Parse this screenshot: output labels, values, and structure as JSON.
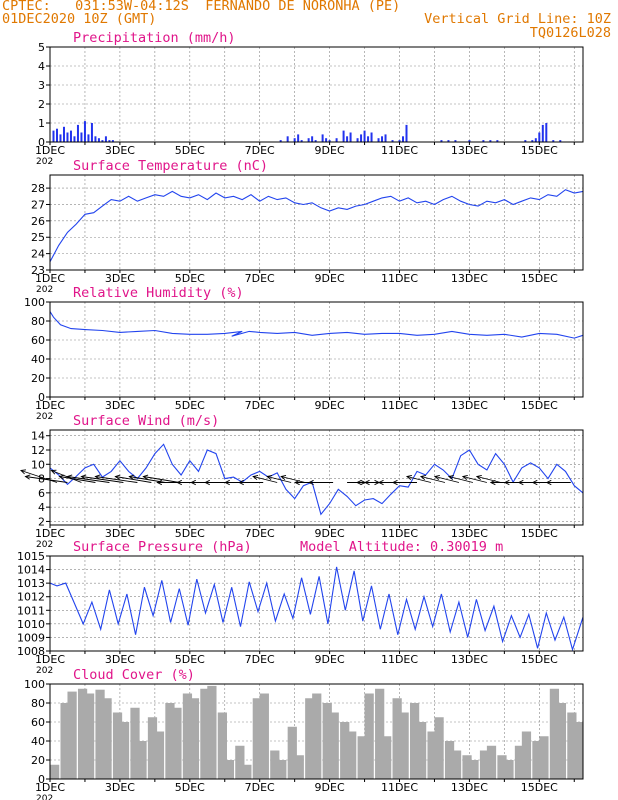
{
  "header": {
    "line1_left": "CPTEC:   031:53W-04:12S  FERNANDO DE NORONHA (PE)",
    "line2_left": "01DEC2020 10Z (GMT)",
    "line2_right": "Vertical Grid Line: 10Z",
    "line3_right": "TQ0126L028"
  },
  "colors": {
    "header": "#e07800",
    "title": "#e0158a",
    "line": "#2244ee",
    "bar": "#2233ee",
    "cloud": "#aaaaaa",
    "arrow": "#000000"
  },
  "x_axis": {
    "labels": [
      "1DEC",
      "3DEC",
      "5DEC",
      "7DEC",
      "9DEC",
      "11DEC",
      "13DEC",
      "15DEC"
    ],
    "cut_label": "202"
  },
  "chart_data": [
    {
      "type": "bar",
      "title": "Precipitation (mm/h)",
      "ylim": [
        0,
        5
      ],
      "yticks": [
        0,
        1,
        2,
        3,
        4,
        5
      ],
      "x_unit": "days since 01DEC2020 10Z",
      "xlim": [
        0,
        15.25
      ],
      "x": [
        0.1,
        0.2,
        0.3,
        0.4,
        0.5,
        0.6,
        0.7,
        0.8,
        0.9,
        1.0,
        1.1,
        1.2,
        1.3,
        1.4,
        1.5,
        1.6,
        1.7,
        1.8,
        6.6,
        6.8,
        7.0,
        7.1,
        7.2,
        7.4,
        7.5,
        7.6,
        7.8,
        7.9,
        8.0,
        8.2,
        8.4,
        8.5,
        8.6,
        8.8,
        8.9,
        9.0,
        9.1,
        9.2,
        9.4,
        9.5,
        9.6,
        9.8,
        10.0,
        10.1,
        10.2,
        11.2,
        11.4,
        11.6,
        12.0,
        12.4,
        12.6,
        12.8,
        13.6,
        13.8,
        13.9,
        14.0,
        14.1,
        14.2,
        14.4,
        14.6
      ],
      "values": [
        0.6,
        0.7,
        0.4,
        0.8,
        0.5,
        0.6,
        0.3,
        0.9,
        0.5,
        1.1,
        0.4,
        1.0,
        0.3,
        0.2,
        0.1,
        0.3,
        0.1,
        0.1,
        0.1,
        0.3,
        0.2,
        0.4,
        0.1,
        0.2,
        0.3,
        0.1,
        0.4,
        0.2,
        0.1,
        0.2,
        0.6,
        0.3,
        0.5,
        0.2,
        0.4,
        0.6,
        0.3,
        0.5,
        0.2,
        0.3,
        0.4,
        0.1,
        0.1,
        0.3,
        0.9,
        0.1,
        0.1,
        0.1,
        0.1,
        0.1,
        0.1,
        0.1,
        0.1,
        0.1,
        0.2,
        0.5,
        0.9,
        1.0,
        0.1,
        0.1
      ]
    },
    {
      "type": "line",
      "title": "Surface Temperature (nC)",
      "ylim": [
        23,
        28.8
      ],
      "yticks": [
        23,
        24,
        25,
        26,
        27,
        28
      ],
      "x_unit": "days since 01DEC2020 10Z",
      "xlim": [
        0,
        15.25
      ],
      "x": [
        0,
        0.25,
        0.5,
        0.75,
        1.0,
        1.25,
        1.5,
        1.75,
        2.0,
        2.25,
        2.5,
        2.75,
        3.0,
        3.25,
        3.5,
        3.75,
        4.0,
        4.25,
        4.5,
        4.75,
        5.0,
        5.25,
        5.5,
        5.75,
        6.0,
        6.25,
        6.5,
        6.75,
        7.0,
        7.25,
        7.5,
        7.75,
        8.0,
        8.25,
        8.5,
        8.75,
        9.0,
        9.25,
        9.5,
        9.75,
        10.0,
        10.25,
        10.5,
        10.75,
        11.0,
        11.25,
        11.5,
        11.75,
        12.0,
        12.25,
        12.5,
        12.75,
        13.0,
        13.25,
        13.5,
        13.75,
        14.0,
        14.25,
        14.5,
        14.75,
        15.0,
        15.25
      ],
      "values": [
        23.5,
        24.5,
        25.3,
        25.8,
        26.4,
        26.5,
        26.9,
        27.3,
        27.2,
        27.5,
        27.2,
        27.4,
        27.6,
        27.5,
        27.8,
        27.5,
        27.4,
        27.6,
        27.3,
        27.7,
        27.4,
        27.5,
        27.3,
        27.6,
        27.2,
        27.5,
        27.3,
        27.4,
        27.1,
        27.0,
        27.1,
        26.8,
        26.6,
        26.8,
        26.7,
        26.9,
        27.0,
        27.2,
        27.4,
        27.5,
        27.2,
        27.4,
        27.1,
        27.2,
        27.0,
        27.3,
        27.5,
        27.2,
        27.0,
        26.9,
        27.2,
        27.1,
        27.3,
        27.0,
        27.2,
        27.4,
        27.3,
        27.6,
        27.5,
        27.9,
        27.7,
        27.8
      ]
    },
    {
      "type": "line",
      "title": "Relative Humidity (%)",
      "ylim": [
        0,
        100
      ],
      "yticks": [
        0,
        20,
        40,
        60,
        80,
        100
      ],
      "x_unit": "days since 01DEC2020 10Z",
      "xlim": [
        0,
        15.25
      ],
      "x": [
        0,
        0.1,
        0.3,
        0.6,
        1.0,
        1.5,
        2.0,
        2.5,
        3.0,
        3.5,
        4.0,
        4.5,
        5.0,
        5.5,
        5.2,
        5.7,
        6.0,
        6.5,
        7.0,
        7.5,
        8.0,
        8.5,
        9.0,
        9.5,
        10.0,
        10.5,
        11.0,
        11.5,
        12.0,
        12.5,
        13.0,
        13.5,
        14.0,
        14.5,
        15.0,
        15.25
      ],
      "values": [
        90,
        84,
        76,
        72,
        71,
        70,
        68,
        69,
        70,
        67,
        66,
        66,
        67,
        69,
        64,
        69,
        68,
        67,
        68,
        65,
        67,
        68,
        66,
        67,
        67,
        65,
        66,
        69,
        66,
        65,
        66,
        63,
        67,
        66,
        62,
        65
      ]
    },
    {
      "type": "line",
      "title": "Surface Wind (m/s)",
      "ylim": [
        1.5,
        14.8
      ],
      "yticks": [
        2,
        4,
        6,
        8,
        10,
        12,
        14
      ],
      "x_unit": "days since 01DEC2020 10Z",
      "xlim": [
        0,
        15.25
      ],
      "x": [
        0,
        0.25,
        0.5,
        0.75,
        1.0,
        1.25,
        1.5,
        1.75,
        2.0,
        2.25,
        2.5,
        2.75,
        3.0,
        3.25,
        3.5,
        3.75,
        4.0,
        4.25,
        4.5,
        4.75,
        5.0,
        5.25,
        5.5,
        5.75,
        6.0,
        6.25,
        6.5,
        6.75,
        7.0,
        7.25,
        7.5,
        7.75,
        8.0,
        8.25,
        8.5,
        8.75,
        9.0,
        9.25,
        9.5,
        9.75,
        10.0,
        10.25,
        10.5,
        10.75,
        11.0,
        11.25,
        11.5,
        11.75,
        12.0,
        12.25,
        12.5,
        12.75,
        13.0,
        13.25,
        13.5,
        13.75,
        14.0,
        14.25,
        14.5,
        14.75,
        15.0,
        15.25
      ],
      "values": [
        9.5,
        8.5,
        7.2,
        8.3,
        9.5,
        10.0,
        8.2,
        9.0,
        10.5,
        9.0,
        8.0,
        9.5,
        11.5,
        12.8,
        10.0,
        8.5,
        10.5,
        9.0,
        12.0,
        11.5,
        8.0,
        8.2,
        7.5,
        8.5,
        9.0,
        8.2,
        8.8,
        6.5,
        5.2,
        7.0,
        7.5,
        3.0,
        4.5,
        6.5,
        5.5,
        4.2,
        5.0,
        5.2,
        4.5,
        5.8,
        7.0,
        6.8,
        9.0,
        8.5,
        10.0,
        9.2,
        8.0,
        11.2,
        12.0,
        10.0,
        9.2,
        11.5,
        10.0,
        7.5,
        9.5,
        10.2,
        9.5,
        8.0,
        10.0,
        9.0,
        7.0,
        6.0
      ],
      "vectors": {
        "x": [
          0.2,
          0.5,
          0.9,
          1.3,
          1.7,
          2.1,
          2.5,
          2.9,
          3.3,
          3.7,
          4.1,
          4.5,
          4.9,
          5.3,
          5.7,
          6.1,
          6.5,
          6.9,
          7.3,
          7.7,
          8.1,
          8.5,
          8.9,
          9.3,
          9.7,
          10.1,
          10.5,
          10.9,
          11.3,
          11.7,
          12.1,
          12.5,
          12.9,
          13.3,
          13.7,
          14.1,
          14.5,
          14.9
        ],
        "u": [
          6,
          7,
          5,
          6,
          7,
          7,
          7,
          6,
          6,
          6,
          6,
          5,
          5,
          5,
          4,
          4,
          4,
          4,
          4,
          4,
          4,
          -3,
          -3,
          3,
          4,
          4,
          4,
          4,
          4,
          4,
          4,
          4,
          4,
          4,
          4,
          4,
          4,
          4
        ],
        "v": [
          2,
          1,
          2,
          1,
          1,
          1,
          1,
          1,
          1,
          1,
          0,
          0,
          0,
          0,
          0,
          0,
          1,
          1,
          1,
          0,
          0,
          0,
          0,
          0,
          0,
          0,
          0,
          1,
          1,
          1,
          1,
          1,
          1,
          0,
          0,
          0,
          0,
          0
        ]
      }
    },
    {
      "type": "line",
      "title": "Surface Pressure (hPa)",
      "annotation": "Model Altitude: 0.30019 m",
      "ylim": [
        1008,
        1015
      ],
      "yticks": [
        1008,
        1009,
        1010,
        1011,
        1012,
        1013,
        1014,
        1015
      ],
      "x_unit": "days since 01DEC2020 10Z",
      "xlim": [
        0,
        15.25
      ],
      "x": [
        0,
        0.2,
        0.45,
        0.7,
        0.95,
        1.2,
        1.45,
        1.7,
        1.95,
        2.2,
        2.45,
        2.7,
        2.95,
        3.2,
        3.45,
        3.7,
        3.95,
        4.2,
        4.45,
        4.7,
        4.95,
        5.2,
        5.45,
        5.7,
        5.95,
        6.2,
        6.45,
        6.7,
        6.95,
        7.2,
        7.45,
        7.7,
        7.95,
        8.2,
        8.45,
        8.7,
        8.95,
        9.2,
        9.45,
        9.7,
        9.95,
        10.2,
        10.45,
        10.7,
        10.95,
        11.2,
        11.45,
        11.7,
        11.95,
        12.2,
        12.45,
        12.7,
        12.95,
        13.2,
        13.45,
        13.7,
        13.95,
        14.2,
        14.45,
        14.7,
        14.95,
        15.25
      ],
      "values": [
        1013.0,
        1012.8,
        1013.0,
        1011.5,
        1010.0,
        1011.6,
        1009.6,
        1012.5,
        1010.0,
        1012.2,
        1009.2,
        1012.7,
        1010.6,
        1013.2,
        1010.1,
        1012.6,
        1009.9,
        1013.3,
        1010.8,
        1012.9,
        1010.1,
        1012.7,
        1009.8,
        1013.1,
        1010.9,
        1013.0,
        1010.2,
        1012.2,
        1010.4,
        1013.4,
        1010.7,
        1013.5,
        1010.0,
        1014.2,
        1011.0,
        1013.9,
        1010.2,
        1012.8,
        1009.6,
        1012.2,
        1009.2,
        1011.8,
        1009.6,
        1012.0,
        1009.8,
        1012.2,
        1009.4,
        1011.6,
        1009.0,
        1011.8,
        1009.5,
        1011.3,
        1008.7,
        1010.6,
        1009.0,
        1010.7,
        1008.2,
        1010.8,
        1008.8,
        1010.5,
        1008.1,
        1010.5
      ]
    },
    {
      "type": "area",
      "title": "Cloud Cover (%)",
      "ylim": [
        0,
        100
      ],
      "yticks": [
        0,
        20,
        40,
        60,
        80,
        100
      ],
      "x_unit": "days since 01DEC2020 10Z",
      "xlim": [
        0,
        15.25
      ],
      "x": [
        0,
        0.3,
        0.5,
        0.8,
        1.0,
        1.3,
        1.5,
        1.8,
        2.0,
        2.3,
        2.5,
        2.8,
        3.0,
        3.3,
        3.5,
        3.8,
        4.0,
        4.3,
        4.5,
        4.8,
        5.0,
        5.3,
        5.5,
        5.8,
        6.0,
        6.3,
        6.5,
        6.8,
        7.0,
        7.3,
        7.5,
        7.8,
        8.0,
        8.3,
        8.5,
        8.8,
        9.0,
        9.3,
        9.5,
        9.8,
        10.0,
        10.3,
        10.5,
        10.8,
        11.0,
        11.3,
        11.5,
        11.8,
        12.0,
        12.3,
        12.5,
        12.8,
        13.0,
        13.3,
        13.5,
        13.8,
        14.0,
        14.3,
        14.5,
        14.8,
        15.0,
        15.25
      ],
      "values": [
        15,
        80,
        92,
        95,
        90,
        94,
        85,
        70,
        60,
        75,
        40,
        65,
        50,
        80,
        75,
        90,
        85,
        95,
        98,
        70,
        20,
        35,
        15,
        85,
        90,
        30,
        20,
        55,
        25,
        85,
        90,
        80,
        70,
        60,
        50,
        45,
        90,
        95,
        45,
        85,
        70,
        80,
        60,
        50,
        65,
        40,
        30,
        25,
        20,
        30,
        35,
        25,
        20,
        35,
        50,
        40,
        45,
        95,
        80,
        70,
        60,
        55
      ]
    }
  ]
}
